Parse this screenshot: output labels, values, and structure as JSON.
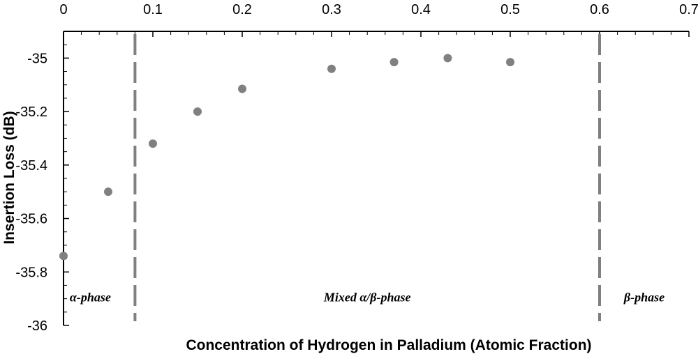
{
  "chart_data": {
    "type": "scatter",
    "xlabel": "Concentration of Hydrogen in Palladium (Atomic Fraction)",
    "ylabel": "Insertion Loss (dB)",
    "xlim": [
      0,
      0.7
    ],
    "ylim": [
      -36,
      -34.9
    ],
    "x_ticks": [
      "0",
      "0.1",
      "0.2",
      "0.3",
      "0.4",
      "0.5",
      "0.6",
      "0.7"
    ],
    "y_ticks": [
      "-35",
      "-35.2",
      "-35.4",
      "-35.6",
      "-35.8",
      "-36"
    ],
    "x_tick_values": [
      0,
      0.1,
      0.2,
      0.3,
      0.4,
      0.5,
      0.6,
      0.7
    ],
    "y_tick_values": [
      -35,
      -35.2,
      -35.4,
      -35.6,
      -35.8,
      -36
    ],
    "x_axis_position": "top",
    "grid": false,
    "legend": "none",
    "marker_color": "#808080",
    "series": [
      {
        "x": [
          0,
          0.05,
          0.1,
          0.15,
          0.2,
          0.3,
          0.37,
          0.43,
          0.5
        ],
        "y": [
          -35.74,
          -35.5,
          -35.32,
          -35.2,
          -35.115,
          -35.04,
          -35.015,
          -35.0,
          -35.015
        ]
      }
    ],
    "phase_boundaries": [
      0.08,
      0.6
    ],
    "boundary_color": "#808080",
    "annotations": [
      {
        "text": "α-phase",
        "x": 0.03,
        "y": -35.91
      },
      {
        "text": "Mixed α/β-phase",
        "x": 0.34,
        "y": -35.91
      },
      {
        "text": "β-phase",
        "x": 0.65,
        "y": -35.91
      }
    ]
  }
}
